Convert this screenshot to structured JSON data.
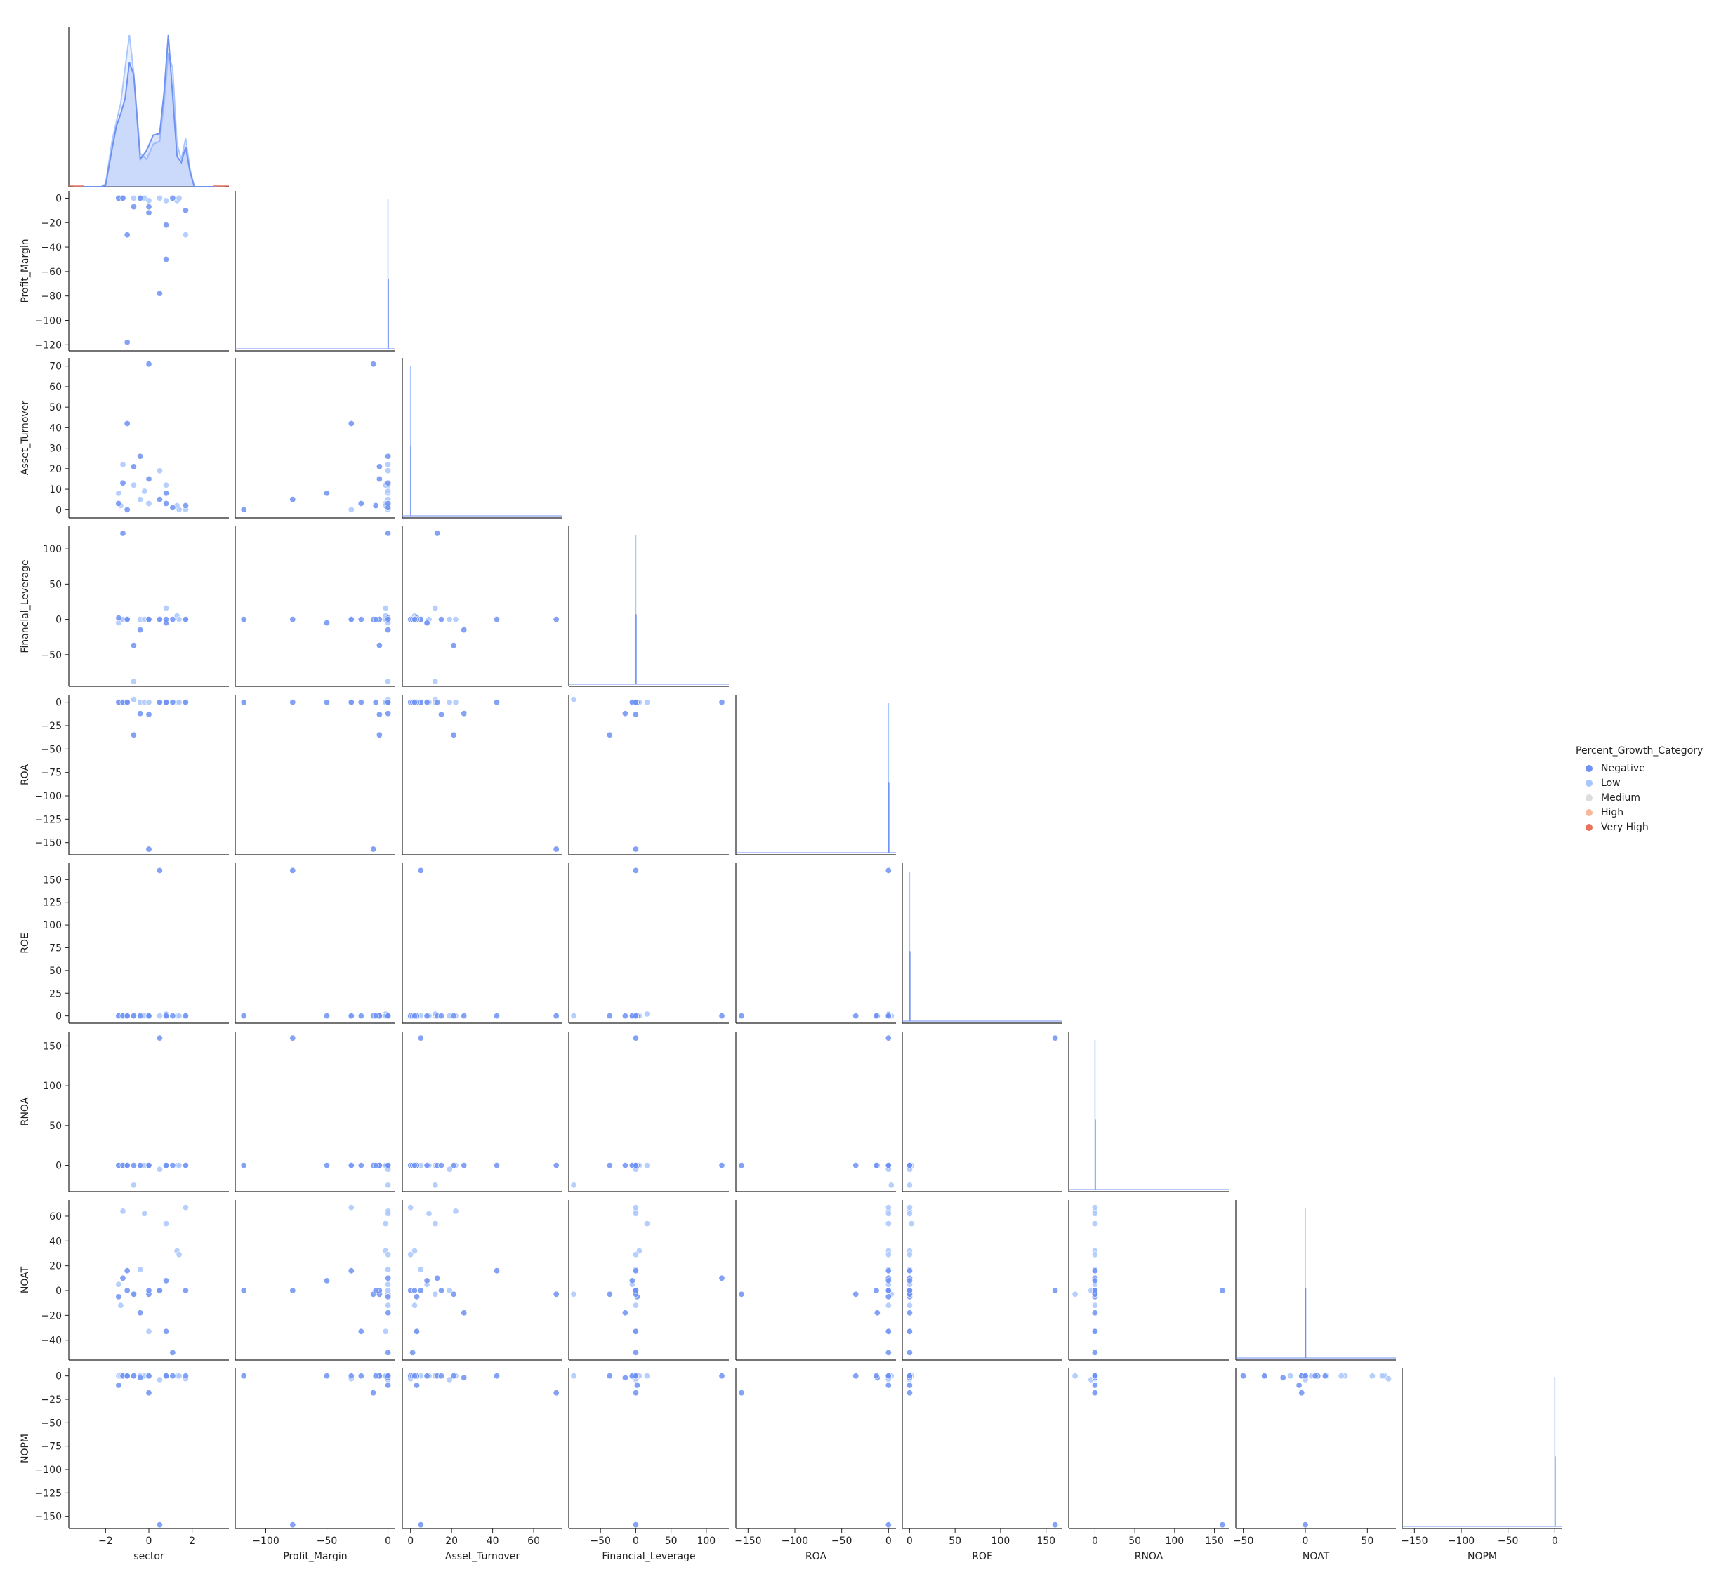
{
  "chart_data": {
    "type": "scatter",
    "title": "",
    "variables": [
      "sector",
      "Profit_Margin",
      "Asset_Turnover",
      "Financial_Leverage",
      "ROA",
      "ROE",
      "RNOA",
      "NOAT",
      "NOPM"
    ],
    "axis_limits": {
      "sector": [
        -3.7,
        3.7
      ],
      "Profit_Margin": [
        -125,
        6
      ],
      "Asset_Turnover": [
        -4,
        74
      ],
      "Financial_Leverage": [
        -95,
        132
      ],
      "ROA": [
        -163,
        8
      ],
      "ROE": [
        -8,
        168
      ],
      "RNOA": [
        -33,
        168
      ],
      "NOAT": [
        -56,
        73
      ],
      "NOPM": [
        -163,
        8
      ]
    },
    "ticks": {
      "sector": [
        -2,
        0,
        2
      ],
      "Profit_Margin": [
        -120,
        -100,
        -80,
        -60,
        -40,
        -20,
        0
      ],
      "Profit_Margin_x": [
        -100,
        -50,
        0
      ],
      "Asset_Turnover": [
        0,
        10,
        20,
        30,
        40,
        50,
        60,
        70
      ],
      "Asset_Turnover_x": [
        0,
        20,
        40,
        60
      ],
      "Financial_Leverage": [
        -50,
        0,
        50,
        100
      ],
      "Financial_Leverage_x": [
        -50,
        0,
        50,
        100
      ],
      "ROA": [
        -150,
        -125,
        -100,
        -75,
        -50,
        -25,
        0
      ],
      "ROA_x": [
        -150,
        -100,
        -50,
        0
      ],
      "ROE": [
        0,
        25,
        50,
        75,
        100,
        125,
        150
      ],
      "ROE_x": [
        0,
        50,
        100,
        150
      ],
      "RNOA": [
        0,
        50,
        100,
        150
      ],
      "RNOA_x": [
        0,
        50,
        100,
        150
      ],
      "NOAT": [
        -40,
        -20,
        0,
        20,
        40,
        60
      ],
      "NOAT_x": [
        -50,
        0,
        50
      ],
      "NOPM": [
        -150,
        -125,
        -100,
        -75,
        -50,
        -25,
        0
      ],
      "NOPM_x": [
        -150,
        -100,
        -50,
        0
      ]
    },
    "legend": {
      "title": "Percent_Growth_Category",
      "placement": "right",
      "entries": [
        {
          "name": "Negative",
          "color": "#6f92f3"
        },
        {
          "name": "Low",
          "color": "#aac7fd"
        },
        {
          "name": "Medium",
          "color": "#dddddd"
        },
        {
          "name": "High",
          "color": "#f7b89c"
        },
        {
          "name": "Very High",
          "color": "#e7745b"
        }
      ]
    },
    "points": [
      {
        "category": "Negative",
        "sector": -1.4,
        "Profit_Margin": 0,
        "Asset_Turnover": 3,
        "Financial_Leverage": 2,
        "ROA": 0,
        "ROE": 0,
        "RNOA": 0,
        "NOAT": -5,
        "NOPM": -10
      },
      {
        "category": "Negative",
        "sector": -1.2,
        "Profit_Margin": 0,
        "Asset_Turnover": 13,
        "Financial_Leverage": 122,
        "ROA": 0,
        "ROE": 0,
        "RNOA": 0,
        "NOAT": 10,
        "NOPM": 0
      },
      {
        "category": "Negative",
        "sector": -1.0,
        "Profit_Margin": -30,
        "Asset_Turnover": 42,
        "Financial_Leverage": 0,
        "ROA": 0,
        "ROE": 0,
        "RNOA": 0,
        "NOAT": 16,
        "NOPM": 0
      },
      {
        "category": "Negative",
        "sector": -1.0,
        "Profit_Margin": -118,
        "Asset_Turnover": 0,
        "Financial_Leverage": 0,
        "ROA": 0,
        "ROE": 0,
        "RNOA": 0,
        "NOAT": 0,
        "NOPM": 0
      },
      {
        "category": "Negative",
        "sector": -0.7,
        "Profit_Margin": -7,
        "Asset_Turnover": 21,
        "Financial_Leverage": -37,
        "ROA": -35,
        "ROE": 0,
        "RNOA": 0,
        "NOAT": -3,
        "NOPM": 0
      },
      {
        "category": "Negative",
        "sector": -0.4,
        "Profit_Margin": 0,
        "Asset_Turnover": 26,
        "Financial_Leverage": -15,
        "ROA": -12,
        "ROE": 0,
        "RNOA": 0,
        "NOAT": -18,
        "NOPM": -2
      },
      {
        "category": "Negative",
        "sector": 0.0,
        "Profit_Margin": -12,
        "Asset_Turnover": 71,
        "Financial_Leverage": 0,
        "ROA": -157,
        "ROE": 0,
        "RNOA": 0,
        "NOAT": -3,
        "NOPM": -18
      },
      {
        "category": "Negative",
        "sector": 0.0,
        "Profit_Margin": -7,
        "Asset_Turnover": 15,
        "Financial_Leverage": 0,
        "ROA": -13,
        "ROE": 0,
        "RNOA": 0,
        "NOAT": 0,
        "NOPM": 0
      },
      {
        "category": "Negative",
        "sector": 0.5,
        "Profit_Margin": -78,
        "Asset_Turnover": 5,
        "Financial_Leverage": 0,
        "ROA": 0,
        "ROE": 160,
        "RNOA": 160,
        "NOAT": 0,
        "NOPM": -159
      },
      {
        "category": "Negative",
        "sector": 0.8,
        "Profit_Margin": -50,
        "Asset_Turnover": 8,
        "Financial_Leverage": -5,
        "ROA": 0,
        "ROE": 0,
        "RNOA": 0,
        "NOAT": 8,
        "NOPM": 0
      },
      {
        "category": "Negative",
        "sector": 0.8,
        "Profit_Margin": -22,
        "Asset_Turnover": 3,
        "Financial_Leverage": 0,
        "ROA": 0,
        "ROE": 0,
        "RNOA": 0,
        "NOAT": -33,
        "NOPM": 0
      },
      {
        "category": "Negative",
        "sector": 1.1,
        "Profit_Margin": 0,
        "Asset_Turnover": 1,
        "Financial_Leverage": 0,
        "ROA": 0,
        "ROE": 0,
        "RNOA": 0,
        "NOAT": -50,
        "NOPM": 0
      },
      {
        "category": "Negative",
        "sector": 1.7,
        "Profit_Margin": -10,
        "Asset_Turnover": 2,
        "Financial_Leverage": 0,
        "ROA": 0,
        "ROE": 0,
        "RNOA": 0,
        "NOAT": 0,
        "NOPM": 0
      },
      {
        "category": "Low",
        "sector": -1.4,
        "Profit_Margin": 0,
        "Asset_Turnover": 8,
        "Financial_Leverage": -5,
        "ROA": 0,
        "ROE": 0,
        "RNOA": 0,
        "NOAT": 5,
        "NOPM": 0
      },
      {
        "category": "Low",
        "sector": -1.3,
        "Profit_Margin": 0,
        "Asset_Turnover": 2,
        "Financial_Leverage": 0,
        "ROA": 0,
        "ROE": 0,
        "RNOA": 0,
        "NOAT": -12,
        "NOPM": 0
      },
      {
        "category": "Low",
        "sector": -1.2,
        "Profit_Margin": 0,
        "Asset_Turnover": 22,
        "Financial_Leverage": 0,
        "ROA": 0,
        "ROE": 0,
        "RNOA": 0,
        "NOAT": 64,
        "NOPM": 0
      },
      {
        "category": "Low",
        "sector": -0.7,
        "Profit_Margin": 0,
        "Asset_Turnover": 12,
        "Financial_Leverage": -88,
        "ROA": 3,
        "ROE": 0,
        "RNOA": -25,
        "NOAT": -3,
        "NOPM": 0
      },
      {
        "category": "Low",
        "sector": -0.4,
        "Profit_Margin": 0,
        "Asset_Turnover": 5,
        "Financial_Leverage": 0,
        "ROA": 0,
        "ROE": 0,
        "RNOA": 0,
        "NOAT": 17,
        "NOPM": 0
      },
      {
        "category": "Low",
        "sector": -0.2,
        "Profit_Margin": 0,
        "Asset_Turnover": 9,
        "Financial_Leverage": 0,
        "ROA": 0,
        "ROE": 0,
        "RNOA": 0,
        "NOAT": 62,
        "NOPM": 0
      },
      {
        "category": "Low",
        "sector": 0.0,
        "Profit_Margin": -2,
        "Asset_Turnover": 3,
        "Financial_Leverage": 0,
        "ROA": 0,
        "ROE": 0,
        "RNOA": 0,
        "NOAT": -33,
        "NOPM": 0
      },
      {
        "category": "Low",
        "sector": 0.5,
        "Profit_Margin": 0,
        "Asset_Turnover": 19,
        "Financial_Leverage": 0,
        "ROA": 0,
        "ROE": 0,
        "RNOA": -5,
        "NOAT": 0,
        "NOPM": -4
      },
      {
        "category": "Low",
        "sector": 0.8,
        "Profit_Margin": -2,
        "Asset_Turnover": 12,
        "Financial_Leverage": 16,
        "ROA": 0,
        "ROE": 2,
        "RNOA": 0,
        "NOAT": 54,
        "NOPM": 0
      },
      {
        "category": "Low",
        "sector": 1.3,
        "Profit_Margin": -2,
        "Asset_Turnover": 2,
        "Financial_Leverage": 5,
        "ROA": 0,
        "ROE": 0,
        "RNOA": 0,
        "NOAT": 32,
        "NOPM": 0
      },
      {
        "category": "Low",
        "sector": 1.4,
        "Profit_Margin": 0,
        "Asset_Turnover": 0,
        "Financial_Leverage": 0,
        "ROA": 0,
        "ROE": 0,
        "RNOA": 0,
        "NOAT": 29,
        "NOPM": 0
      },
      {
        "category": "Low",
        "sector": 1.7,
        "Profit_Margin": -30,
        "Asset_Turnover": 0,
        "Financial_Leverage": 0,
        "ROA": 0,
        "ROE": 0,
        "RNOA": 0,
        "NOAT": 67,
        "NOPM": -3
      }
    ],
    "kde_sector": {
      "x": [
        -3.5,
        -2.2,
        -2.0,
        -1.7,
        -1.5,
        -1.3,
        -1.1,
        -0.9,
        -0.7,
        -0.4,
        -0.1,
        0.2,
        0.5,
        0.7,
        0.9,
        1.1,
        1.3,
        1.5,
        1.7,
        1.9,
        2.1,
        3.5
      ],
      "Negative": [
        0,
        0,
        0.01,
        0.25,
        0.4,
        0.48,
        0.58,
        0.82,
        0.74,
        0.18,
        0.24,
        0.34,
        0.35,
        0.62,
        1.0,
        0.6,
        0.2,
        0.16,
        0.26,
        0.1,
        0,
        0
      ],
      "Low": [
        0,
        0,
        0.02,
        0.3,
        0.43,
        0.55,
        0.78,
        1.0,
        0.75,
        0.22,
        0.18,
        0.28,
        0.3,
        0.55,
        0.88,
        0.78,
        0.28,
        0.18,
        0.32,
        0.12,
        0,
        0
      ]
    }
  }
}
